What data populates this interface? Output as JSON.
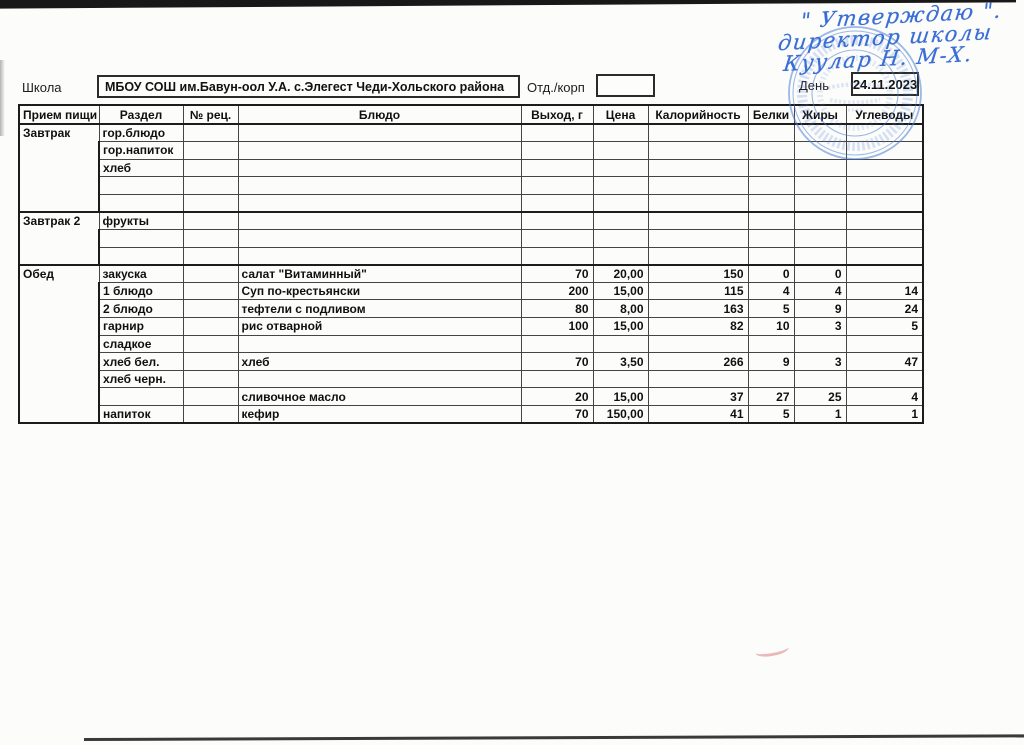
{
  "document": {
    "header": {
      "school_label": "Школа",
      "school_name": "МБОУ СОШ им.Бавун-оол У.А. с.Элегест Чеди-Хольского района",
      "dept_label": "Отд./корп",
      "dept_value": "",
      "day_label": "День",
      "day_value": "24.11.2023"
    },
    "approval_handwriting": {
      "line1": "\" Утверждаю \".",
      "line2": "директор школы",
      "line3": "Куулар Н. М-Х."
    },
    "stamp": {
      "kind": "round-school-seal",
      "color": "#4b80d6"
    },
    "table": {
      "columns": [
        "Прием пищи",
        "Раздел",
        "№ рец.",
        "Блюдо",
        "Выход, г",
        "Цена",
        "Калорийность",
        "Белки",
        "Жиры",
        "Углеводы"
      ],
      "sections": [
        {
          "meal": "Завтрак",
          "rows": [
            {
              "razdel": "гор.блюдо"
            },
            {
              "razdel": "гор.напиток"
            },
            {
              "razdel": "хлеб"
            },
            {},
            {}
          ]
        },
        {
          "meal": "Завтрак 2",
          "rows": [
            {
              "razdel": "фрукты"
            },
            {},
            {}
          ]
        },
        {
          "meal": "Обед",
          "rows": [
            {
              "razdel": "закуска",
              "dish": "салат \"Витаминный\"",
              "out": "70",
              "price": "20,00",
              "kcal": "150",
              "protein": "0",
              "fat": "0",
              "carbs": ""
            },
            {
              "razdel": "1 блюдо",
              "dish": "Суп по-крестьянски",
              "out": "200",
              "price": "15,00",
              "kcal": "115",
              "protein": "4",
              "fat": "4",
              "carbs": "14"
            },
            {
              "razdel": "2 блюдо",
              "dish": "тефтели с подливом",
              "out": "80",
              "price": "8,00",
              "kcal": "163",
              "protein": "5",
              "fat": "9",
              "carbs": "24"
            },
            {
              "razdel": "гарнир",
              "dish": "рис отварной",
              "out": "100",
              "price": "15,00",
              "kcal": "82",
              "protein": "10",
              "fat": "3",
              "carbs": "5"
            },
            {
              "razdel": "сладкое"
            },
            {
              "razdel": "хлеб бел.",
              "dish": "хлеб",
              "out": "70",
              "price": "3,50",
              "kcal": "266",
              "protein": "9",
              "fat": "3",
              "carbs": "47"
            },
            {
              "razdel": "хлеб черн."
            },
            {
              "razdel": "",
              "dish": "сливочное масло",
              "out": "20",
              "price": "15,00",
              "kcal": "37",
              "protein": "27",
              "fat": "25",
              "carbs": "4"
            },
            {
              "razdel": "напиток",
              "dish": "кефир",
              "out": "70",
              "price": "150,00",
              "kcal": "41",
              "protein": "5",
              "fat": "1",
              "carbs": "1"
            }
          ]
        }
      ]
    },
    "colors": {
      "ink_blue": "#3a6ed4",
      "stamp_blue": "#4b80d6",
      "paper": "#fcfcfa",
      "table_line": "#1c1c1c"
    }
  }
}
